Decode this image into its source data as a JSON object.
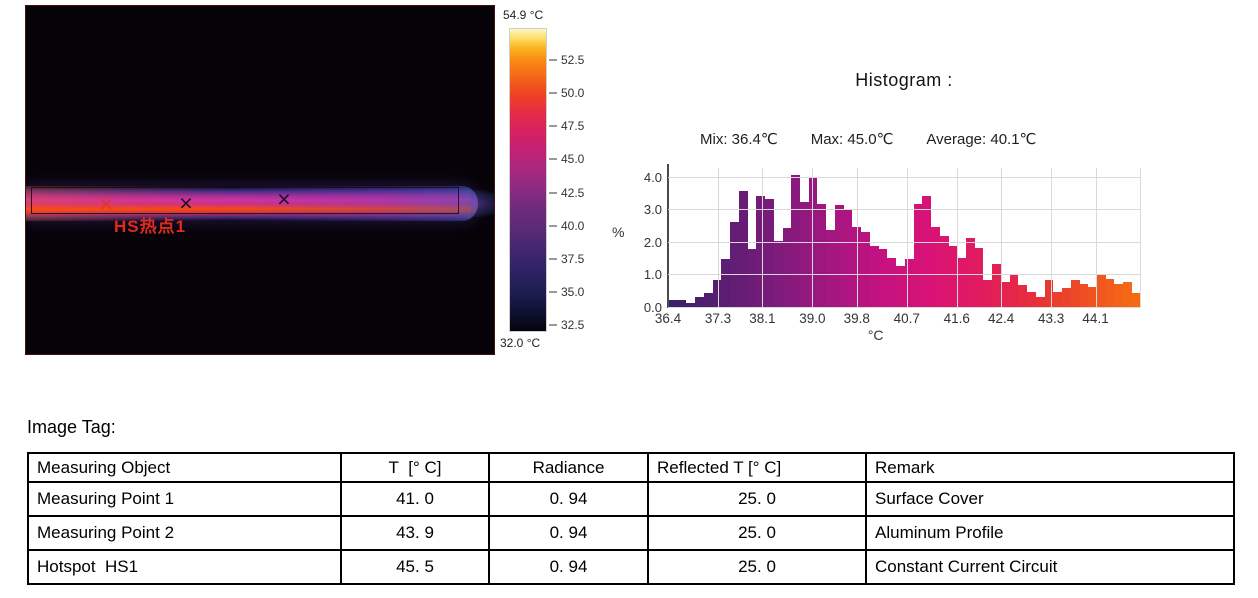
{
  "thermal_image": {
    "hotspot_label": "HS热点1",
    "markers": [
      {
        "name": "marker-hotspot-hs1",
        "x": 80,
        "y": 198,
        "color": "#e33326",
        "glyph": "×"
      },
      {
        "name": "marker-measuring-point-1",
        "x": 160,
        "y": 197,
        "color": "#1f0f26",
        "glyph": "×"
      },
      {
        "name": "marker-measuring-point-2",
        "x": 258,
        "y": 193,
        "color": "#1f0f26",
        "glyph": "×"
      }
    ]
  },
  "color_scale": {
    "max_label": "54.9 °C",
    "min_label": "32.0 °C",
    "range": [
      32.0,
      54.9
    ],
    "ticks": [
      "52.5",
      "50.0",
      "47.5",
      "45.0",
      "42.5",
      "40.0",
      "37.5",
      "35.0",
      "32.5"
    ],
    "gradient_stops": [
      "#04030c 0%",
      "#0e1130 6%",
      "#1c1c4f 12%",
      "#2e2366 20%",
      "#46276f 28%",
      "#5c2a78 34%",
      "#752b7e 42%",
      "#8f2b81 48%",
      "#aa277e 54%",
      "#c32174 60%",
      "#d62160 66%",
      "#e42b46 72%",
      "#ee4125 78%",
      "#f46617 84%",
      "#f98d11 90%",
      "#fbb722 94%",
      "#fde06a 97%",
      "#fdf4c3 100%"
    ]
  },
  "histogram": {
    "title": "Histogram :",
    "stats": {
      "min": "Mix: 36.4℃",
      "max": "Max: 45.0℃",
      "average": "Average: 40.1℃"
    }
  },
  "chart_data": {
    "type": "bar",
    "title": "Histogram",
    "xlabel": "°C",
    "ylabel": "%",
    "xlim": [
      36.4,
      44.9
    ],
    "ylim": [
      0,
      4.3
    ],
    "x_ticks": [
      36.4,
      37.3,
      38.1,
      39.0,
      39.8,
      40.7,
      41.6,
      42.4,
      43.3,
      44.1
    ],
    "y_ticks": [
      0.0,
      1.0,
      2.0,
      3.0,
      4.0
    ],
    "bin_start": 36.4,
    "bin_width": 0.157,
    "values": [
      0.25,
      0.25,
      0.15,
      0.35,
      0.45,
      0.85,
      1.5,
      2.65,
      3.6,
      1.8,
      3.45,
      3.35,
      2.05,
      2.45,
      4.1,
      3.25,
      4.0,
      3.2,
      2.4,
      3.15,
      3.0,
      2.5,
      2.35,
      1.9,
      1.8,
      1.55,
      1.3,
      1.5,
      3.2,
      3.45,
      2.5,
      2.2,
      1.9,
      1.55,
      2.15,
      1.85,
      0.85,
      1.35,
      0.8,
      1.0,
      0.7,
      0.5,
      0.35,
      0.85,
      0.5,
      0.6,
      0.85,
      0.75,
      0.65,
      1.0,
      0.9,
      0.75,
      0.8,
      0.45
    ],
    "color_stops": [
      "#3b2166",
      "#5c1d72",
      "#7d1b7b",
      "#a11780",
      "#c31280",
      "#d91377",
      "#e21b5e",
      "#e62f3b",
      "#ee4e22",
      "#f46c12"
    ],
    "grid": true,
    "legend": false
  },
  "image_tag": {
    "label": "Image Tag:"
  },
  "table": {
    "headers": [
      "Measuring Object",
      "T  [° C]",
      "Radiance",
      "Reflected T [° C]",
      "Remark"
    ],
    "rows": [
      [
        "Measuring Point 1",
        "41. 0",
        "0. 94",
        "25. 0",
        "Surface Cover"
      ],
      [
        "Measuring Point 2",
        "43. 9",
        "0. 94",
        "25. 0",
        "Aluminum Profile"
      ],
      [
        "Hotspot  HS1",
        "45. 5",
        "0. 94",
        "25. 0",
        "Constant Current Circuit"
      ]
    ]
  }
}
